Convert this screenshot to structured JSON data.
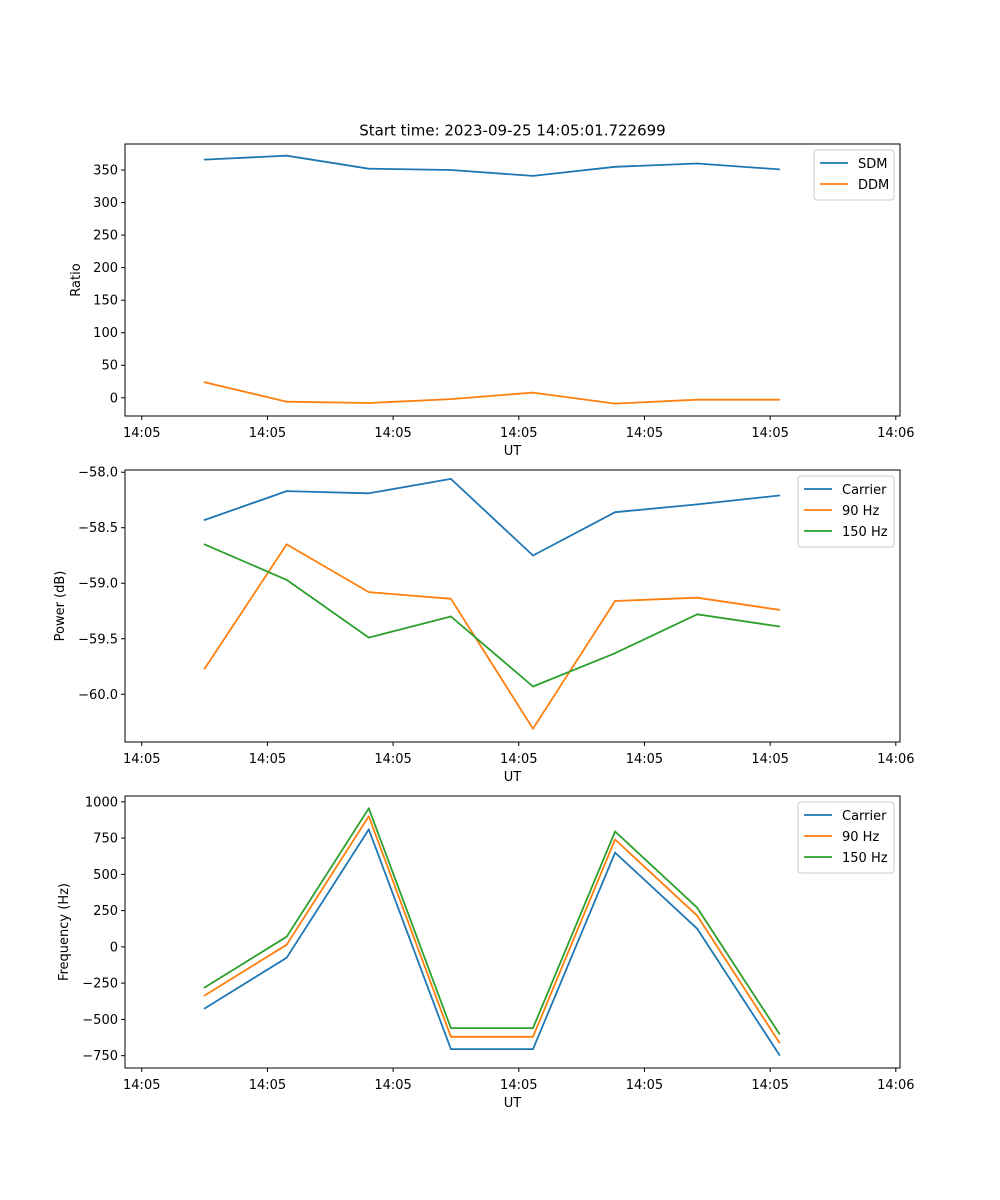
{
  "figure_title": "Start time: 2023-09-25 14:05:01.722699",
  "colors": {
    "blue": "#1f77b4",
    "orange": "#ff7f0e",
    "green": "#2ca02c"
  },
  "chart_data": [
    {
      "type": "line",
      "ylabel": "Ratio",
      "xlabel": "UT",
      "xlim": [
        0,
        9.25
      ],
      "xticks": [
        0.2,
        1.7,
        3.2,
        4.7,
        6.2,
        7.7,
        9.2
      ],
      "xtick_labels": [
        "14:05",
        "14:05",
        "14:05",
        "14:05",
        "14:05",
        "14:05",
        "14:06"
      ],
      "x": [
        0.95,
        1.93,
        2.91,
        3.89,
        4.87,
        5.85,
        6.83,
        7.81
      ],
      "ylim": [
        -28,
        390
      ],
      "yticks": [
        0,
        50,
        100,
        150,
        200,
        250,
        300,
        350
      ],
      "ytick_labels": [
        "0",
        "50",
        "100",
        "150",
        "200",
        "250",
        "300",
        "350"
      ],
      "legend": "top-right",
      "series": [
        {
          "name": "SDM",
          "color": "#1f77b4",
          "values": [
            366,
            372,
            352,
            350,
            341,
            355,
            360,
            351
          ]
        },
        {
          "name": "DDM",
          "color": "#ff7f0e",
          "values": [
            24,
            -6,
            -8,
            -2,
            8,
            -9,
            -3,
            -3
          ]
        }
      ]
    },
    {
      "type": "line",
      "ylabel": "Power (dB)",
      "xlabel": "UT",
      "xlim": [
        0,
        9.25
      ],
      "xticks": [
        0.2,
        1.7,
        3.2,
        4.7,
        6.2,
        7.7,
        9.2
      ],
      "xtick_labels": [
        "14:05",
        "14:05",
        "14:05",
        "14:05",
        "14:05",
        "14:05",
        "14:06"
      ],
      "x": [
        0.95,
        1.93,
        2.91,
        3.89,
        4.87,
        5.85,
        6.83,
        7.81
      ],
      "ylim": [
        -60.43,
        -57.98
      ],
      "yticks": [
        -60.0,
        -59.5,
        -59.0,
        -58.5,
        -58.0
      ],
      "ytick_labels": [
        "−60.0",
        "−59.5",
        "−59.0",
        "−58.5",
        "−58.0"
      ],
      "legend": "top-right",
      "series": [
        {
          "name": "Carrier",
          "color": "#1f77b4",
          "values": [
            -58.43,
            -58.17,
            -58.19,
            -58.06,
            -58.75,
            -58.36,
            -58.29,
            -58.21
          ]
        },
        {
          "name": "90 Hz",
          "color": "#ff7f0e",
          "values": [
            -59.77,
            -58.65,
            -59.08,
            -59.14,
            -60.31,
            -59.16,
            -59.13,
            -59.24
          ]
        },
        {
          "name": "150 Hz",
          "color": "#2ca02c",
          "values": [
            -58.65,
            -58.97,
            -59.49,
            -59.3,
            -59.93,
            -59.63,
            -59.28,
            -59.39
          ]
        }
      ]
    },
    {
      "type": "line",
      "ylabel": "Frequency (Hz)",
      "xlabel": "UT",
      "xlim": [
        0,
        9.25
      ],
      "xticks": [
        0.2,
        1.7,
        3.2,
        4.7,
        6.2,
        7.7,
        9.2
      ],
      "xtick_labels": [
        "14:05",
        "14:05",
        "14:05",
        "14:05",
        "14:05",
        "14:05",
        "14:06"
      ],
      "x": [
        0.95,
        1.93,
        2.91,
        3.89,
        4.87,
        5.85,
        6.83,
        7.81
      ],
      "ylim": [
        -835,
        1040
      ],
      "yticks": [
        -750,
        -500,
        -250,
        0,
        250,
        500,
        750,
        1000
      ],
      "ytick_labels": [
        "−750",
        "−500",
        "−250",
        "0",
        "250",
        "500",
        "750",
        "1000"
      ],
      "legend": "top-right",
      "series": [
        {
          "name": "Carrier",
          "color": "#1f77b4",
          "values": [
            -425,
            -75,
            810,
            -705,
            -705,
            650,
            125,
            -745
          ]
        },
        {
          "name": "90 Hz",
          "color": "#ff7f0e",
          "values": [
            -335,
            15,
            900,
            -620,
            -620,
            740,
            215,
            -660
          ]
        },
        {
          "name": "150 Hz",
          "color": "#2ca02c",
          "values": [
            -280,
            70,
            955,
            -560,
            -560,
            795,
            270,
            -600
          ]
        }
      ]
    }
  ]
}
